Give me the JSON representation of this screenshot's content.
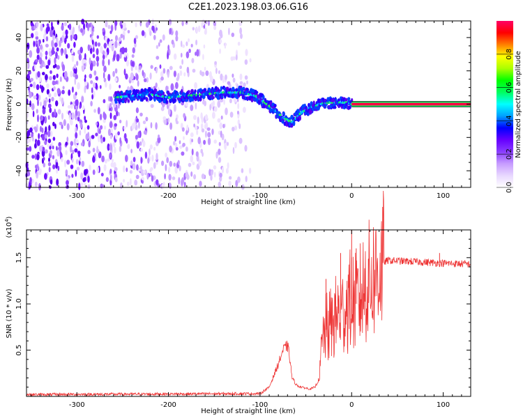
{
  "title": "C2E1.2023.198.03.06.G16",
  "chart_data": [
    {
      "type": "heatmap",
      "xlabel": "Height of straight line (km)",
      "ylabel": "Frequency (Hz)",
      "xlim": [
        -355,
        130
      ],
      "ylim": [
        -50,
        50
      ],
      "xticks": [
        -300,
        -200,
        -100,
        0,
        100
      ],
      "yticks": [
        -40,
        -20,
        0,
        20,
        40
      ],
      "colorbar": {
        "label": "Normalized spectral amplitude",
        "ticks": [
          0.0,
          0.2,
          0.4,
          0.6,
          0.8
        ],
        "range": [
          0,
          1
        ],
        "colormap": [
          "#ffffff",
          "#e8d8ff",
          "#c79cff",
          "#8a3dff",
          "#6600ff",
          "#0000ff",
          "#00a0ff",
          "#00ffff",
          "#00ff60",
          "#00ff00",
          "#aaff00",
          "#ffff00",
          "#ff8000",
          "#ff0000",
          "#ff0066"
        ]
      },
      "ridge": {
        "x": [
          -258,
          -240,
          -220,
          -200,
          -180,
          -160,
          -140,
          -120,
          -105,
          -95,
          -85,
          -75,
          -65,
          -55,
          -45,
          -35,
          -25,
          -15,
          -5,
          0,
          130
        ],
        "y": [
          4,
          5,
          6,
          4,
          5,
          6,
          7,
          7,
          5,
          1,
          -3,
          -8,
          -11,
          -5,
          -2,
          0,
          1,
          1,
          1,
          0,
          0
        ]
      },
      "noise_region_x": [
        -355,
        -110
      ],
      "grid": false
    },
    {
      "type": "line",
      "xlabel": "Height of straight line (km)",
      "ylabel": "SNR (10 * v/v)",
      "yscale_label": "(x10",
      "yscale_exp": "4",
      "yscale_close": ")",
      "xlim": [
        -355,
        130
      ],
      "ylim": [
        0,
        1.8
      ],
      "xticks": [
        -300,
        -200,
        -100,
        0,
        100
      ],
      "yticks": [
        0.5,
        1.0,
        1.5
      ],
      "color": "#ee3333",
      "profile": {
        "x": [
          -355,
          -100,
          -90,
          -80,
          -75,
          -70,
          -68,
          -65,
          -60,
          -55,
          -50,
          -45,
          -40,
          -35,
          -33,
          -30,
          -25,
          -20,
          -15,
          -10,
          -5,
          0,
          5,
          10,
          15,
          20,
          25,
          30,
          35,
          40,
          60,
          80,
          100,
          130
        ],
        "y": [
          0.02,
          0.03,
          0.1,
          0.35,
          0.5,
          0.55,
          0.45,
          0.2,
          0.12,
          0.1,
          0.09,
          0.08,
          0.1,
          0.2,
          0.5,
          0.7,
          0.75,
          0.8,
          0.9,
          0.9,
          1.0,
          1.05,
          1.0,
          1.1,
          1.2,
          1.25,
          1.3,
          1.38,
          1.45,
          1.47,
          1.46,
          1.45,
          1.44,
          1.43
        ]
      },
      "spikes": [
        {
          "x": -28,
          "y": 1.27
        },
        {
          "x": -12,
          "y": 1.55
        },
        {
          "x": 0,
          "y": 1.8
        },
        {
          "x": 5,
          "y": 1.6
        },
        {
          "x": 96,
          "y": 1.55
        }
      ],
      "grid": false
    }
  ]
}
